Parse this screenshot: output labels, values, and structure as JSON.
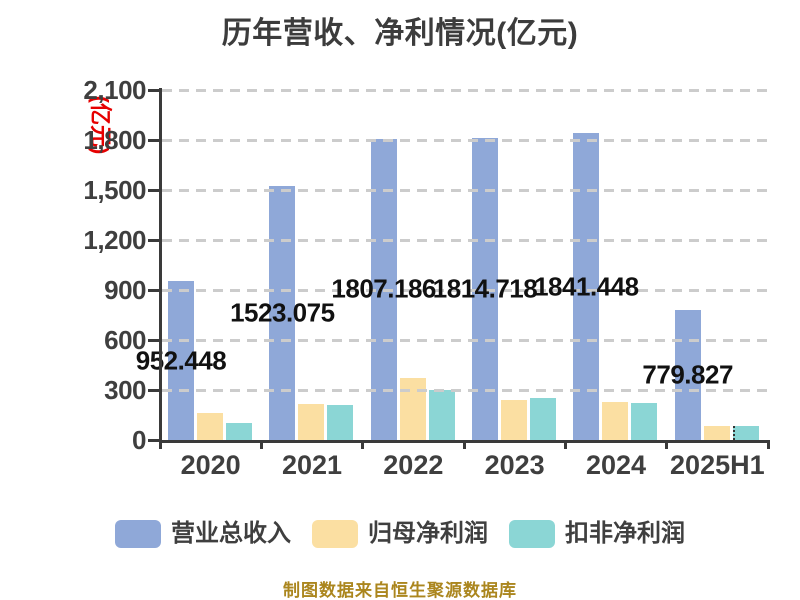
{
  "title": "历年营收、净利情况(亿元)",
  "y_axis": {
    "unit_label": "(亿元)",
    "unit_color": "#e60000",
    "tick_labels": [
      "0",
      "300",
      "600",
      "900",
      "1,200",
      "1,500",
      "1,800",
      "2,100"
    ],
    "tick_values": [
      0,
      300,
      600,
      900,
      1200,
      1500,
      1800,
      2100
    ]
  },
  "footer": "制图数据来自恒生聚源数据库",
  "colors": {
    "revenue_bar": "#8FA8D8",
    "net_profit_bar": "#FBDFA2",
    "non_recurring_bar": "#8BD6D5",
    "grid": "#cccccc",
    "axis": "#3a3a3a",
    "data_label": "#111111",
    "footer_text": "#ab861e"
  },
  "chart_data": {
    "type": "bar",
    "categories": [
      "2020",
      "2021",
      "2022",
      "2023",
      "2024",
      "2025H1"
    ],
    "series": [
      {
        "name": "营业总收入",
        "color": "#8FA8D8",
        "values": [
          952.448,
          1523.075,
          1807.186,
          1814.718,
          1841.448,
          779.827
        ],
        "data_labels": [
          "952.448",
          "1523.075",
          "1807.186",
          "1814.718",
          "1841.448",
          "779.827"
        ]
      },
      {
        "name": "归母净利润",
        "color": "#FBDFA2",
        "values": [
          160,
          215,
          375,
          240,
          230,
          85
        ]
      },
      {
        "name": "扣非净利润",
        "color": "#8BD6D5",
        "values": [
          105,
          212,
          303,
          255,
          221,
          82
        ]
      }
    ],
    "ylim": [
      0,
      2100
    ],
    "grid": true,
    "legend_position": "bottom",
    "value_labels_on": "营业总收入"
  }
}
